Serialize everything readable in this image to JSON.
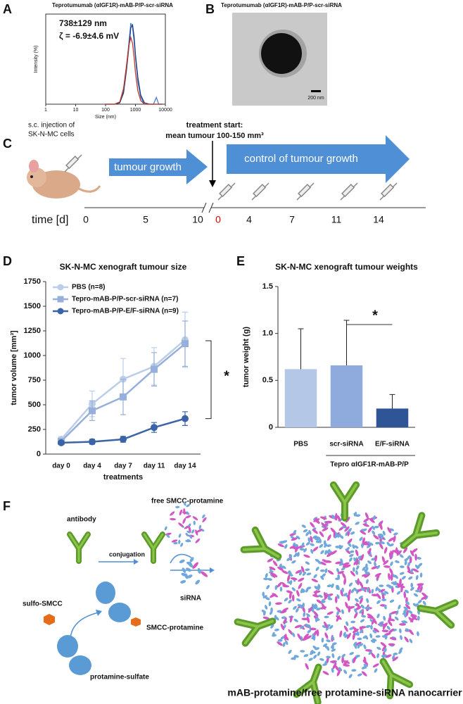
{
  "panel_labels": [
    "A",
    "B",
    "C",
    "D",
    "E",
    "F"
  ],
  "chart_data": [
    {
      "type": "line",
      "title": "Teprotumumab (αIGF1R)-mAB-P/P-scr-siRNA",
      "annotations": [
        "738±129 nm",
        "ζ = -6.9±4.6 mV"
      ],
      "x_label": "Size (nm)",
      "y_label": "Intensity (%)",
      "xscale": "log",
      "x": [
        100,
        200,
        300,
        400,
        500,
        600,
        700,
        800,
        900,
        1000,
        1200,
        1500,
        2000,
        3000,
        4000,
        5000,
        6000,
        8000
      ],
      "xlim": [
        1,
        10000
      ],
      "xticks": [
        1,
        10,
        100,
        1000,
        10000
      ],
      "ylim": [
        0,
        20
      ],
      "series": [
        {
          "color": "#4a7fd0",
          "values": [
            0,
            0,
            0.5,
            3,
            8,
            13.5,
            18,
            17,
            14,
            10.5,
            5,
            1.5,
            0,
            0,
            0,
            1.5,
            0,
            0
          ]
        },
        {
          "color": "#1f3f7a",
          "values": [
            0,
            0,
            0.3,
            2.5,
            7.5,
            12.5,
            17,
            17.6,
            15,
            11,
            6,
            2,
            0.3,
            0,
            0,
            0,
            0,
            0
          ]
        },
        {
          "color": "#c0392b",
          "values": [
            0,
            0,
            0.5,
            3.5,
            8.5,
            13,
            14.8,
            13.5,
            10.5,
            7,
            3,
            0.8,
            0,
            0,
            0,
            0,
            0,
            0
          ]
        }
      ]
    },
    {
      "type": "line",
      "title": "SK-N-MC xenograft tumour size",
      "x_label": "treatments",
      "y_label": "tumor volume [mm³]",
      "annotations": [
        "*"
      ],
      "categories": [
        "day 0",
        "day 4",
        "day 7",
        "day 11",
        "day 14"
      ],
      "ylim": [
        0,
        1750
      ],
      "yticks": [
        0,
        250,
        500,
        750,
        1000,
        1250,
        1500,
        1750
      ],
      "legend": "upper left",
      "series": [
        {
          "name": "PBS (n=8)",
          "color": "#bccde8",
          "marker": "circle",
          "values": [
            150,
            510,
            760,
            890,
            1160
          ],
          "errors": [
            25,
            130,
            210,
            190,
            280
          ]
        },
        {
          "name": "Tepro-mAB-P/P-scr-siRNA (n=7)",
          "color": "#97b0db",
          "marker": "square",
          "values": [
            130,
            440,
            580,
            860,
            1120
          ],
          "errors": [
            20,
            100,
            180,
            170,
            230
          ]
        },
        {
          "name": "Tepro-mAB-P/P-E/F-siRNA (n=9)",
          "color": "#3b64a8",
          "marker": "circle",
          "values": [
            115,
            125,
            150,
            270,
            360
          ],
          "errors": [
            10,
            25,
            30,
            50,
            70
          ]
        }
      ]
    },
    {
      "type": "bar",
      "title": "SK-N-MC xenograft tumour weights",
      "y_label": "tumor weight (g)",
      "annotations": [
        "*"
      ],
      "group_label": "Tepro αIGF1R-mAB-P/P",
      "categories": [
        "PBS",
        "scr-siRNA",
        "E/F-siRNA"
      ],
      "values": [
        0.62,
        0.66,
        0.2
      ],
      "errors": [
        0.43,
        0.48,
        0.15
      ],
      "colors": [
        "#b4c7e7",
        "#8faadc",
        "#2f5597"
      ],
      "ylim": [
        0,
        1.5
      ],
      "yticks": [
        0,
        0.5,
        {
          "value": 1,
          "label": "1.0"
        },
        1.5
      ]
    }
  ],
  "image": {
    "title": "Teprotumumab (αIGF1R)-mAB-P/P-scr-siRNA",
    "scale_bar": "200 nm"
  },
  "timeline": {
    "injection": [
      "s.c. injection of",
      "SK-N-MC cells"
    ],
    "start": [
      "treatment start:",
      "mean tumour 100-150 mm³"
    ],
    "phase_1": "tumour growth",
    "phase_2": "control of tumour growth",
    "axis_label": "time [d]",
    "ticks": [
      "0",
      "5",
      "10",
      "0",
      "4",
      "7",
      "11",
      "14"
    ]
  },
  "scheme": {
    "antibody": "antibody",
    "conjugation": "conjugation",
    "free": "free SMCC-protamine",
    "sirna": "siRNA",
    "linker": "sulfo-SMCC",
    "smcc": "SMCC-protamine",
    "protamine": "protamine-sulfate",
    "product": "mAB-protamine/free protamine-siRNA nanocarrier"
  }
}
